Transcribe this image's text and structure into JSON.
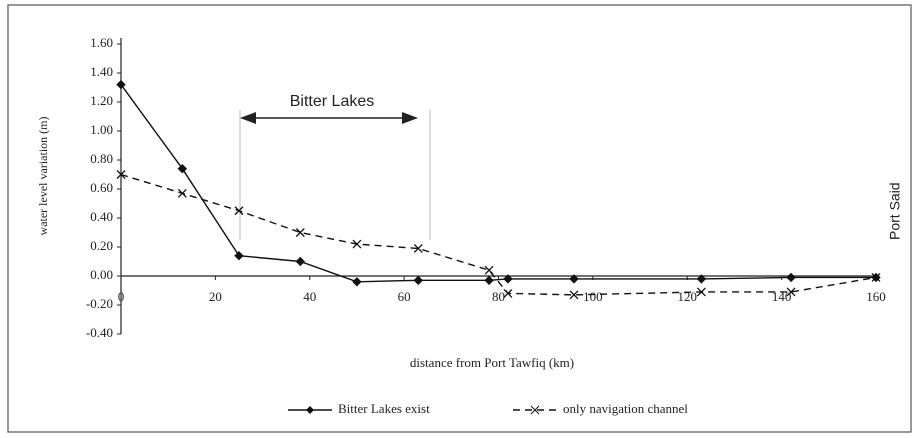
{
  "chart_data": {
    "type": "line",
    "xlabel": "distance from Port Tawfiq (km)",
    "ylabel": "water level variation (m)",
    "annotations": [
      "Bitter Lakes",
      "Port Said"
    ],
    "x": [
      0,
      13,
      25,
      38,
      50,
      63,
      78,
      82,
      96,
      123,
      142,
      160
    ],
    "series": [
      {
        "name": "Bitter Lakes exist",
        "color": "#111111",
        "marker": "diamond",
        "dash": false,
        "values": [
          1.32,
          0.74,
          0.14,
          0.1,
          -0.04,
          -0.03,
          -0.03,
          -0.02,
          -0.02,
          -0.02,
          -0.01,
          -0.01
        ]
      },
      {
        "name": "only navigation channel",
        "color": "#111111",
        "marker": "x",
        "dash": true,
        "values": [
          0.7,
          0.57,
          0.45,
          0.3,
          0.22,
          0.19,
          0.04,
          -0.12,
          -0.13,
          -0.11,
          -0.11,
          -0.01
        ]
      }
    ],
    "xlim": [
      0,
      160
    ],
    "xticks": [
      0,
      20,
      40,
      60,
      80,
      100,
      120,
      140,
      160
    ],
    "ylim": [
      -0.4,
      1.6
    ],
    "yticks": [
      {
        "value": -0.4,
        "label": "-0.40"
      },
      {
        "value": -0.2,
        "label": "-0.20"
      },
      {
        "value": 0,
        "label": "0.00"
      },
      {
        "value": 0.2,
        "label": "0.20"
      },
      {
        "value": 0.4,
        "label": "0.40"
      },
      {
        "value": 0.6,
        "label": "0.60"
      },
      {
        "value": 0.8,
        "label": "0.80"
      },
      {
        "value": 1.0,
        "label": "1.00"
      },
      {
        "value": 1.2,
        "label": "1.20"
      },
      {
        "value": 1.4,
        "label": "1.40"
      },
      {
        "value": 1.6,
        "label": "1.60"
      }
    ],
    "legend": "bottom"
  }
}
